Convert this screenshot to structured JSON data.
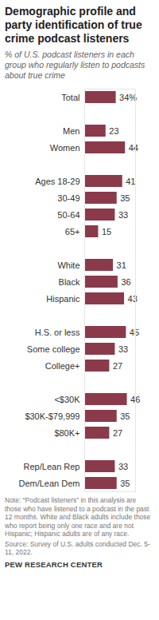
{
  "chart_data": {
    "type": "bar",
    "orientation": "horizontal",
    "title": "Demographic profile and party identification of true crime podcast listeners",
    "subtitle": "% of U.S. podcast listeners in each group who regularly listen to podcasts about true crime",
    "categories": [
      "Total",
      null,
      "Men",
      "Women",
      null,
      "Ages 18-29",
      "30-49",
      "50-64",
      "65+",
      null,
      "White",
      "Black",
      "Hispanic",
      null,
      "H.S. or less",
      "Some college",
      "College+",
      null,
      "<$30K",
      "$30K-$79,999",
      "$80K+",
      null,
      "Rep/Lean Rep",
      "Dem/Lean Dem"
    ],
    "values": [
      34,
      null,
      23,
      44,
      null,
      41,
      35,
      33,
      15,
      null,
      31,
      36,
      43,
      null,
      45,
      33,
      27,
      null,
      46,
      35,
      27,
      null,
      33,
      35
    ],
    "value_labels": [
      "34%",
      null,
      "23",
      "44",
      null,
      "41",
      "35",
      "33",
      "15",
      null,
      "31",
      "36",
      "43",
      null,
      "45",
      "33",
      "27",
      null,
      "46",
      "35",
      "27",
      null,
      "33",
      "35"
    ],
    "color": "#8b3a4b",
    "xlim": [
      0,
      55
    ],
    "xticks": [],
    "data_labels": true,
    "tick_labels": "y",
    "grid": false,
    "note": "Note: “Podcast listeners” in this analysis are those who have listened to a podcast in the past 12 months. White and Black adults include those who report being only one race and are not Hispanic; Hispanic adults are of any race.",
    "source": "Source: Survey of U.S. adults conducted Dec. 5-11, 2022.",
    "credit": "PEW RESEARCH CENTER"
  }
}
